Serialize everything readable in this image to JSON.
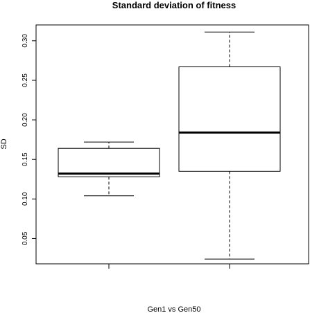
{
  "chart_data": {
    "type": "boxplot",
    "title": "Standard deviation of fitness",
    "xlabel": "Gen1 vs Gen50",
    "ylabel": "SD",
    "ylim": [
      0.018,
      0.32
    ],
    "yticks": [
      0.05,
      0.1,
      0.15,
      0.2,
      0.25,
      0.3
    ],
    "ytick_labels": [
      "0.05",
      "0.10",
      "0.15",
      "0.20",
      "0.25",
      "0.30"
    ],
    "grid": false,
    "legend": "none",
    "boxes": [
      {
        "whisker_low": 0.104,
        "q1": 0.128,
        "median": 0.132,
        "q3": 0.164,
        "whisker_high": 0.172
      },
      {
        "whisker_low": 0.024,
        "q1": 0.135,
        "median": 0.184,
        "q3": 0.267,
        "whisker_high": 0.311
      }
    ]
  }
}
